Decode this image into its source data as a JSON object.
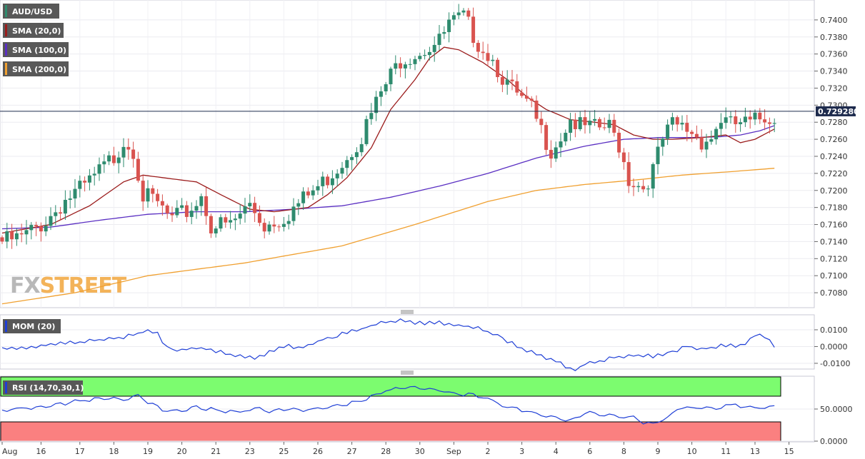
{
  "symbol": "AUD/USD",
  "watermark": {
    "part1": "FX",
    "part2": "STREET"
  },
  "colors": {
    "bull": "#2e8b6e",
    "bear": "#d9534f",
    "sma20": "#9b1c1c",
    "sma100": "#5a2fc2",
    "sma200": "#f0a030",
    "mom": "#1f3fd6",
    "rsi": "#1f3fd6",
    "rsi_over": "#7cfc6f",
    "rsi_under": "#fa8080",
    "legend_bg": "#585858",
    "lastprice_bg": "#1e2b4d"
  },
  "legends": {
    "price": [
      {
        "label": "AUD/USD",
        "color": "#2e8b6e"
      },
      {
        "label": "SMA (20,0)",
        "color": "#9b1c1c"
      },
      {
        "label": "SMA (100,0)",
        "color": "#5a2fc2"
      },
      {
        "label": "SMA (200,0)",
        "color": "#f0a030"
      }
    ],
    "mom": {
      "label": "MOM (20)",
      "color": "#1f3fd6"
    },
    "rsi": {
      "label": "RSI (14,70,30,1)",
      "color": "#1f3fd6"
    }
  },
  "last_price": "0.729280",
  "chart_data": [
    {
      "type": "candlestick",
      "symbol": "AUD/USD",
      "ylim": [
        0.7065,
        0.742
      ],
      "yticks": [
        "0.7080",
        "0.7100",
        "0.7120",
        "0.7140",
        "0.7160",
        "0.7180",
        "0.7200",
        "0.7220",
        "0.7240",
        "0.7260",
        "0.7280",
        "0.7300",
        "0.7320",
        "0.7340",
        "0.7360",
        "0.7380",
        "0.7400"
      ],
      "xticks": [
        "Aug",
        "16",
        "17",
        "18",
        "19",
        "20",
        "21",
        "23",
        "25",
        "26",
        "27",
        "28",
        "30",
        "Sep",
        "2",
        "3",
        "4",
        "6",
        "8",
        "9",
        "10",
        "11",
        "13",
        "15"
      ],
      "waypoints": [
        [
          0,
          0.7145
        ],
        [
          5,
          0.715
        ],
        [
          10,
          0.717
        ],
        [
          14,
          0.7195
        ],
        [
          18,
          0.721
        ],
        [
          24,
          0.7245
        ],
        [
          26,
          0.7265
        ],
        [
          28,
          0.7255
        ],
        [
          30,
          0.72
        ],
        [
          33,
          0.719
        ],
        [
          36,
          0.717
        ],
        [
          40,
          0.7185
        ],
        [
          42,
          0.72
        ],
        [
          44,
          0.7165
        ],
        [
          48,
          0.7165
        ],
        [
          52,
          0.719
        ],
        [
          55,
          0.7165
        ],
        [
          59,
          0.7175
        ],
        [
          63,
          0.7195
        ],
        [
          67,
          0.7215
        ],
        [
          71,
          0.724
        ],
        [
          75,
          0.727
        ],
        [
          79,
          0.732
        ],
        [
          83,
          0.736
        ],
        [
          87,
          0.737
        ],
        [
          91,
          0.738
        ],
        [
          93,
          0.74
        ],
        [
          96,
          0.7408
        ],
        [
          99,
          0.738
        ],
        [
          102,
          0.736
        ],
        [
          105,
          0.733
        ],
        [
          108,
          0.731
        ],
        [
          110,
          0.73
        ],
        [
          112,
          0.7275
        ],
        [
          114,
          0.7255
        ],
        [
          116,
          0.727
        ],
        [
          118,
          0.729
        ],
        [
          120,
          0.728
        ],
        [
          123,
          0.7278
        ],
        [
          126,
          0.728
        ],
        [
          128,
          0.726
        ],
        [
          130,
          0.722
        ],
        [
          133,
          0.721
        ],
        [
          135,
          0.723
        ],
        [
          137,
          0.7265
        ],
        [
          139,
          0.7282
        ],
        [
          141,
          0.728
        ],
        [
          143,
          0.7275
        ],
        [
          145,
          0.7265
        ],
        [
          147,
          0.7268
        ],
        [
          149,
          0.729
        ],
        [
          151,
          0.7282
        ],
        [
          153,
          0.7285
        ],
        [
          155,
          0.7283
        ],
        [
          157,
          0.729
        ],
        [
          159,
          0.7293
        ]
      ],
      "sma20_waypoints": [
        [
          0,
          0.715
        ],
        [
          10,
          0.716
        ],
        [
          18,
          0.7182
        ],
        [
          25,
          0.721
        ],
        [
          29,
          0.7218
        ],
        [
          33,
          0.7215
        ],
        [
          40,
          0.721
        ],
        [
          45,
          0.7195
        ],
        [
          51,
          0.7178
        ],
        [
          56,
          0.7175
        ],
        [
          63,
          0.718
        ],
        [
          67,
          0.7195
        ],
        [
          71,
          0.7215
        ],
        [
          76,
          0.725
        ],
        [
          80,
          0.7295
        ],
        [
          85,
          0.733
        ],
        [
          88,
          0.7355
        ],
        [
          91,
          0.7368
        ],
        [
          94,
          0.7365
        ],
        [
          99,
          0.735
        ],
        [
          104,
          0.733
        ],
        [
          108,
          0.731
        ],
        [
          112,
          0.7295
        ],
        [
          117,
          0.7283
        ],
        [
          122,
          0.728
        ],
        [
          126,
          0.7277
        ],
        [
          130,
          0.7265
        ],
        [
          134,
          0.726
        ],
        [
          138,
          0.726
        ],
        [
          144,
          0.7262
        ],
        [
          149,
          0.7265
        ],
        [
          152,
          0.7256
        ],
        [
          155,
          0.726
        ],
        [
          159,
          0.7272
        ]
      ],
      "sma100_waypoints": [
        [
          0,
          0.7155
        ],
        [
          10,
          0.7157
        ],
        [
          20,
          0.7165
        ],
        [
          30,
          0.7172
        ],
        [
          40,
          0.7175
        ],
        [
          50,
          0.7175
        ],
        [
          60,
          0.7178
        ],
        [
          70,
          0.7182
        ],
        [
          80,
          0.7192
        ],
        [
          90,
          0.7205
        ],
        [
          100,
          0.722
        ],
        [
          110,
          0.7238
        ],
        [
          120,
          0.7252
        ],
        [
          128,
          0.726
        ],
        [
          135,
          0.7262
        ],
        [
          142,
          0.7262
        ],
        [
          148,
          0.7263
        ],
        [
          152,
          0.7265
        ],
        [
          156,
          0.727
        ],
        [
          159,
          0.7276
        ]
      ],
      "sma200_waypoints": [
        [
          0,
          0.7067
        ],
        [
          15,
          0.708
        ],
        [
          30,
          0.71
        ],
        [
          50,
          0.7115
        ],
        [
          70,
          0.7135
        ],
        [
          85,
          0.716
        ],
        [
          100,
          0.7187
        ],
        [
          110,
          0.72
        ],
        [
          120,
          0.7207
        ],
        [
          130,
          0.7212
        ],
        [
          140,
          0.7218
        ],
        [
          150,
          0.7222
        ],
        [
          159,
          0.7226
        ]
      ]
    },
    {
      "type": "line",
      "name": "MOM (20)",
      "ylim": [
        -0.013,
        0.0185
      ],
      "yticks": [
        "0.0100",
        "0.0000",
        "-0.0100"
      ],
      "waypoints": [
        [
          0,
          0.0
        ],
        [
          5,
          0.0
        ],
        [
          10,
          0.0018
        ],
        [
          15,
          0.003
        ],
        [
          20,
          0.0045
        ],
        [
          25,
          0.006
        ],
        [
          28,
          0.0085
        ],
        [
          30,
          0.0105
        ],
        [
          32,
          0.008
        ],
        [
          34,
          0.0
        ],
        [
          36,
          -0.002
        ],
        [
          40,
          0.0
        ],
        [
          44,
          -0.002
        ],
        [
          48,
          -0.005
        ],
        [
          52,
          -0.006
        ],
        [
          55,
          -0.003
        ],
        [
          58,
          0.001
        ],
        [
          62,
          0.0
        ],
        [
          66,
          0.005
        ],
        [
          70,
          0.008
        ],
        [
          74,
          0.011
        ],
        [
          78,
          0.015
        ],
        [
          82,
          0.016
        ],
        [
          86,
          0.0145
        ],
        [
          90,
          0.015
        ],
        [
          94,
          0.013
        ],
        [
          98,
          0.012
        ],
        [
          102,
          0.007
        ],
        [
          106,
          0.001
        ],
        [
          110,
          -0.004
        ],
        [
          114,
          -0.008
        ],
        [
          116,
          -0.011
        ],
        [
          118,
          -0.0135
        ],
        [
          120,
          -0.01
        ],
        [
          123,
          -0.008
        ],
        [
          126,
          -0.006
        ],
        [
          130,
          -0.0045
        ],
        [
          134,
          -0.005
        ],
        [
          138,
          -0.0025
        ],
        [
          141,
          0.001
        ],
        [
          144,
          -0.001
        ],
        [
          148,
          0.001
        ],
        [
          152,
          0.001
        ],
        [
          155,
          0.007
        ],
        [
          157,
          0.007
        ],
        [
          159,
          0.001
        ]
      ]
    },
    {
      "type": "line",
      "name": "RSI (14,70,30,1)",
      "ylim": [
        0,
        100
      ],
      "overbought": 70,
      "oversold": 30,
      "yticks": [
        "50.0000",
        "0.0000"
      ],
      "waypoints": [
        [
          0,
          50
        ],
        [
          5,
          53
        ],
        [
          10,
          57
        ],
        [
          15,
          63
        ],
        [
          20,
          68
        ],
        [
          25,
          67
        ],
        [
          28,
          72
        ],
        [
          30,
          62
        ],
        [
          33,
          50
        ],
        [
          36,
          48
        ],
        [
          40,
          55
        ],
        [
          44,
          50
        ],
        [
          48,
          47
        ],
        [
          52,
          53
        ],
        [
          55,
          48
        ],
        [
          58,
          51
        ],
        [
          62,
          50
        ],
        [
          66,
          53
        ],
        [
          70,
          58
        ],
        [
          74,
          64
        ],
        [
          78,
          78
        ],
        [
          82,
          85
        ],
        [
          86,
          84
        ],
        [
          90,
          80
        ],
        [
          94,
          75
        ],
        [
          98,
          72
        ],
        [
          102,
          60
        ],
        [
          106,
          52
        ],
        [
          110,
          45
        ],
        [
          114,
          37
        ],
        [
          117,
          33
        ],
        [
          120,
          46
        ],
        [
          123,
          43
        ],
        [
          126,
          41
        ],
        [
          130,
          38
        ],
        [
          132,
          30
        ],
        [
          134,
          28
        ],
        [
          137,
          38
        ],
        [
          139,
          53
        ],
        [
          143,
          53
        ],
        [
          147,
          52
        ],
        [
          149,
          57
        ],
        [
          152,
          56
        ],
        [
          155,
          53
        ],
        [
          157,
          54
        ],
        [
          159,
          56
        ]
      ]
    }
  ]
}
